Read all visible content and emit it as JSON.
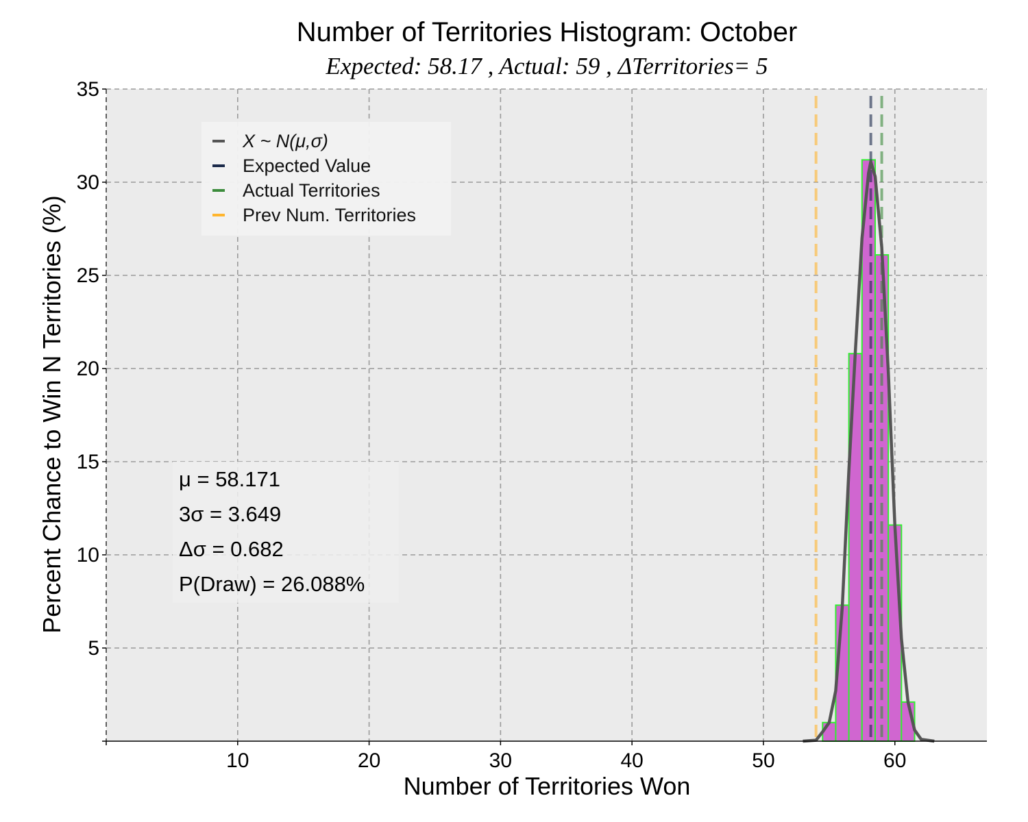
{
  "chart_data": {
    "type": "bar",
    "title": "Number of Territories Histogram: October",
    "subtitle": "Expected: 58.17 , Actual: 59 , ΔTerritories= 5",
    "xlabel": "Number of Territories Won",
    "ylabel": "Percent Chance to Win N Territories (%)",
    "xlim": [
      0,
      67
    ],
    "ylim": [
      0,
      35
    ],
    "xticks": [
      10,
      20,
      30,
      40,
      50,
      60
    ],
    "yticks": [
      5,
      10,
      15,
      20,
      25,
      30,
      35
    ],
    "grid": true,
    "legend_position": "upper-left",
    "bars": {
      "x": [
        54,
        55,
        56,
        57,
        58,
        59,
        60,
        61
      ],
      "values": [
        0.0,
        1.0,
        7.3,
        20.8,
        31.2,
        26.1,
        11.6,
        2.1
      ],
      "fill_color": "#d066d0",
      "edge_color": "#33ee33"
    },
    "series": [
      {
        "name": "X ~ N(μ,σ)",
        "x": [
          53,
          54,
          54.5,
          55,
          55.5,
          56,
          56.5,
          57,
          57.5,
          58,
          58.17,
          58.5,
          59,
          59.5,
          60,
          60.5,
          61,
          61.5,
          62,
          63
        ],
        "values": [
          0.0,
          0.05,
          0.5,
          1.0,
          2.7,
          7.2,
          14.5,
          21.0,
          27.0,
          30.5,
          31.1,
          30.3,
          26.5,
          19.8,
          11.6,
          5.5,
          2.1,
          0.6,
          0.1,
          0.0
        ],
        "color": "#555555"
      }
    ],
    "vlines": [
      {
        "name": "Expected Value",
        "x": 58.17,
        "color": "#1b2a4a"
      },
      {
        "name": "Actual Territories",
        "x": 59,
        "color": "#3c8c3c"
      },
      {
        "name": "Prev Num. Territories",
        "x": 54,
        "color": "#ffb52e"
      }
    ],
    "legend": [
      {
        "label": "X ~ N(μ,σ)",
        "color": "#555555"
      },
      {
        "label": "Expected Value",
        "color": "#1b2a4a"
      },
      {
        "label": "Actual Territories",
        "color": "#3c8c3c"
      },
      {
        "label": "Prev Num. Territories",
        "color": "#ffb52e"
      }
    ],
    "annotations": [
      "μ = 58.171",
      "3σ = 3.649",
      "Δσ = 0.682",
      "P(Draw) = 26.088%"
    ],
    "colors": {
      "axes_background": "#ebebeb",
      "grid": "#9a9a9a"
    }
  }
}
